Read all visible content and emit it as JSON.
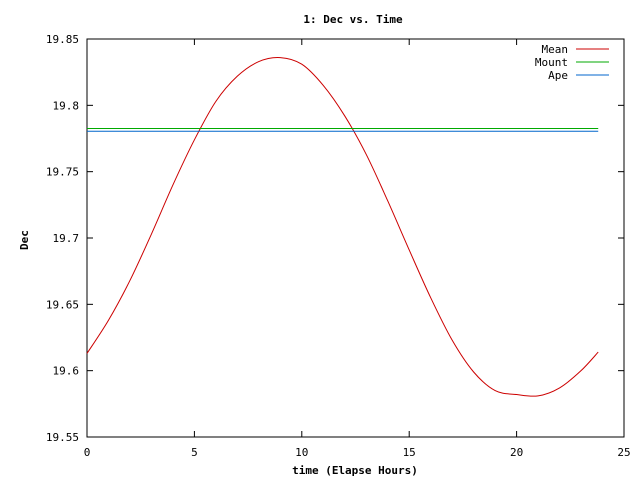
{
  "chart_data": {
    "type": "line",
    "title": "1: Dec vs. Time",
    "xlabel": "time (Elapse Hours)",
    "ylabel": "Dec",
    "xlim": [
      0,
      25
    ],
    "ylim": [
      19.55,
      19.85
    ],
    "xticks": [
      "0",
      "5",
      "10",
      "15",
      "20",
      "25"
    ],
    "yticks": [
      "19.55",
      "19.6",
      "19.65",
      "19.7",
      "19.75",
      "19.8",
      "19.85"
    ],
    "grid": false,
    "legend_position": "top-right",
    "series": [
      {
        "name": "Mean",
        "color": "#cc0000",
        "x": [
          0,
          1,
          2,
          3,
          4,
          5,
          6,
          7,
          8,
          9,
          10,
          11,
          12,
          13,
          14,
          15,
          16,
          17,
          18,
          19,
          20,
          21,
          22,
          23,
          23.8
        ],
        "y": [
          19.613,
          19.638,
          19.668,
          19.703,
          19.74,
          19.774,
          19.803,
          19.822,
          19.833,
          19.836,
          19.831,
          19.815,
          19.792,
          19.763,
          19.728,
          19.691,
          19.655,
          19.623,
          19.599,
          19.585,
          19.582,
          19.581,
          19.587,
          19.6,
          19.614
        ]
      },
      {
        "name": "Mount",
        "color": "#00aa00",
        "x": [
          0,
          23.8
        ],
        "y": [
          19.7825,
          19.7825
        ]
      },
      {
        "name": "Ape",
        "color": "#0066cc",
        "x": [
          0,
          23.8
        ],
        "y": [
          19.7805,
          19.7805
        ]
      }
    ]
  }
}
